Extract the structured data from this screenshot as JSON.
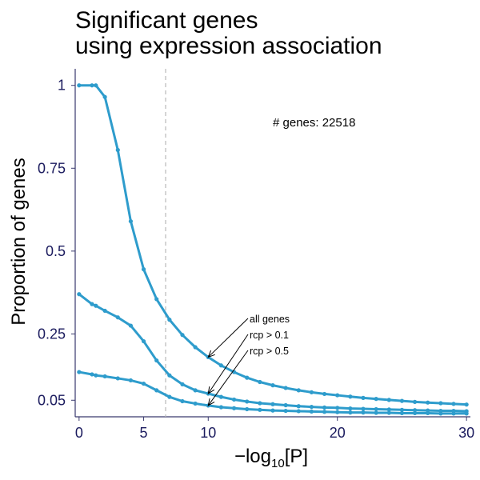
{
  "chart_data": {
    "type": "line",
    "title": [
      "Significant genes",
      "using expression association"
    ],
    "xlabel_prefix": "−log",
    "xlabel_sub": "10",
    "xlabel_arg": "[P]",
    "ylabel": "Proportion of genes",
    "xlim": [
      -0.3,
      30.3
    ],
    "ylim": [
      0.0,
      1.05
    ],
    "x_ticks": [
      0,
      5,
      10,
      20,
      30
    ],
    "x_tick_labels": [
      "0",
      "5",
      "10",
      "20",
      "30"
    ],
    "y_ticks": [
      0.05,
      0.25,
      0.5,
      0.75,
      1
    ],
    "y_tick_labels": [
      "0.05",
      "0.25",
      "0.5",
      "0.75",
      "1"
    ],
    "threshold_x": 6.7,
    "gene_count_label": "# genes: 22518",
    "x": [
      0,
      1,
      1.3,
      2,
      3,
      4,
      5,
      6,
      7,
      8,
      9,
      10,
      11,
      12,
      13,
      14,
      15,
      16,
      17,
      18,
      19,
      20,
      21,
      22,
      23,
      24,
      25,
      26,
      27,
      28,
      29,
      30
    ],
    "series": [
      {
        "name": "all genes",
        "color": "#2e9ccc",
        "values": [
          1.0,
          1.0,
          1.0,
          0.965,
          0.805,
          0.59,
          0.445,
          0.355,
          0.293,
          0.247,
          0.21,
          0.18,
          0.155,
          0.135,
          0.118,
          0.105,
          0.095,
          0.087,
          0.08,
          0.074,
          0.069,
          0.065,
          0.061,
          0.057,
          0.054,
          0.051,
          0.048,
          0.045,
          0.043,
          0.041,
          0.039,
          0.037
        ]
      },
      {
        "name": "rcp > 0.1",
        "color": "#2e9ccc",
        "values": [
          0.37,
          0.34,
          0.335,
          0.32,
          0.3,
          0.275,
          0.228,
          0.17,
          0.125,
          0.098,
          0.08,
          0.07,
          0.06,
          0.052,
          0.046,
          0.041,
          0.038,
          0.035,
          0.032,
          0.03,
          0.028,
          0.027,
          0.025,
          0.024,
          0.023,
          0.022,
          0.021,
          0.02,
          0.019,
          0.018,
          0.018,
          0.017
        ]
      },
      {
        "name": "rcp > 0.5",
        "color": "#2e9ccc",
        "values": [
          0.135,
          0.128,
          0.125,
          0.122,
          0.116,
          0.11,
          0.1,
          0.08,
          0.06,
          0.047,
          0.04,
          0.034,
          0.029,
          0.026,
          0.023,
          0.021,
          0.019,
          0.018,
          0.017,
          0.016,
          0.015,
          0.014,
          0.013,
          0.013,
          0.012,
          0.012,
          0.011,
          0.011,
          0.011,
          0.01,
          0.01,
          0.01
        ]
      }
    ],
    "annotations": [
      {
        "text": "all genes",
        "target_series": 0,
        "target_x": 10,
        "row": 0
      },
      {
        "text": "rcp > 0.1",
        "target_series": 1,
        "target_x": 10,
        "row": 1
      },
      {
        "text": "rcp > 0.5",
        "target_series": 2,
        "target_x": 10,
        "row": 2
      }
    ]
  }
}
